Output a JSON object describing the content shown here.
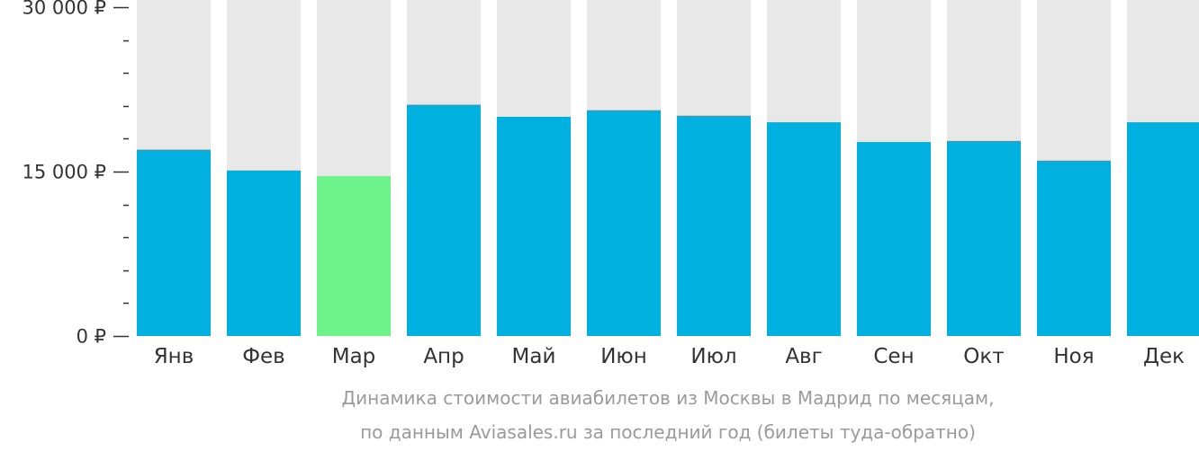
{
  "chart_data": {
    "type": "bar",
    "categories": [
      "Янв",
      "Фев",
      "Мар",
      "Апр",
      "Май",
      "Июн",
      "Июл",
      "Авг",
      "Сен",
      "Окт",
      "Ноя",
      "Дек"
    ],
    "values": [
      17000,
      15100,
      14600,
      21100,
      20000,
      20600,
      20100,
      19500,
      17700,
      17800,
      16000,
      19500
    ],
    "ylim": [
      0,
      30000
    ],
    "yticks": [
      {
        "value": 0,
        "label": "0 ₽"
      },
      {
        "value": 15000,
        "label": "15 000 ₽"
      },
      {
        "value": 30000,
        "label": "30 000 ₽"
      }
    ],
    "minor_tick_step": 3000,
    "highlight_category": "Мар",
    "colors": {
      "bar": "#00b0de",
      "highlight": "#6ef28a",
      "track": "#e8e8e8",
      "axis": "#333333"
    },
    "caption": [
      "Динамика стоимости авиабилетов из Москвы в Мадрид по месяцам,",
      "по данным Aviasales.ru за последний год (билеты туда-обратно)"
    ],
    "grid": false,
    "legend": "none"
  }
}
